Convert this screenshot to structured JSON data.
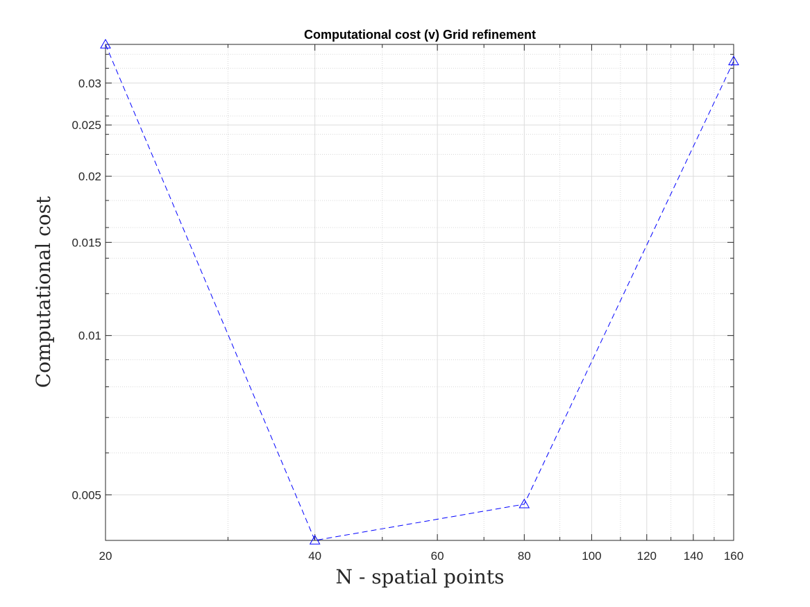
{
  "chart_data": {
    "type": "line",
    "title": "Computational cost (v) Grid refinement",
    "xlabel": "N - spatial points",
    "ylabel": "Computational cost",
    "xscale": "log",
    "yscale": "log",
    "xlim": [
      20,
      160
    ],
    "ylim": [
      0.0041,
      0.0355
    ],
    "xticks": [
      20,
      40,
      60,
      80,
      100,
      120,
      140,
      160
    ],
    "xtick_labels": [
      "20",
      "40",
      "60",
      "80",
      "100",
      "120",
      "140",
      "160"
    ],
    "yticks": [
      0.005,
      0.01,
      0.015,
      0.02,
      0.025,
      0.03
    ],
    "ytick_labels": [
      "0.005",
      "0.01",
      "0.015",
      "0.02",
      "0.025",
      "0.03"
    ],
    "grid": true,
    "minor_grid": true,
    "series": [
      {
        "x": [
          20,
          40,
          80,
          160
        ],
        "y": [
          0.0355,
          0.0041,
          0.0048,
          0.033
        ],
        "color": "#0000ff",
        "line_style": "dashed",
        "marker": "triangle-up"
      }
    ]
  }
}
